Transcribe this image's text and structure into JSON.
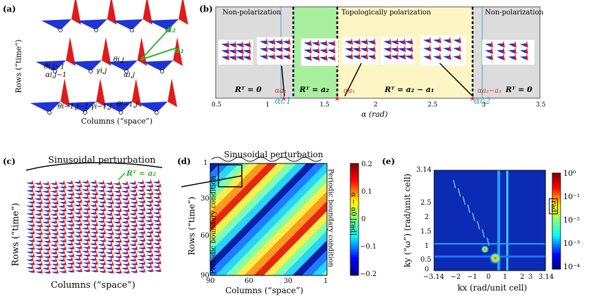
{
  "colors": {
    "red": "#e01b1b",
    "blue": "#1f33d6",
    "green_region": "#9ef09a",
    "yellow_region": "#fdf6c2",
    "gray_region": "#dcdcdc",
    "cyan_line": "#36a7d9",
    "green_text": "#2fb22f",
    "red_text": "#e03030",
    "cyan_text": "#1fa6d6"
  },
  "panel_a": {
    "tag": "(a)",
    "ylabel": "Rows (“time”)",
    "xlabel": "Columns (“space”)",
    "vec_a2": "a₂",
    "vec_a1": "a₁",
    "labels": [
      "θi,j",
      "θi,j−1",
      "αi,j−1",
      "γi,j",
      "αi,j",
      "θi−1,j−1",
      "γi−1,j",
      "θi−1,j"
    ]
  },
  "panel_b": {
    "tag": "(b)",
    "region_nonpol_left": "Non-polarization",
    "region_topo": "Topologically polarization",
    "region_nonpol_right": "Non-polarization",
    "rt_labels": [
      "Rᵀ = 0",
      "Rᵀ = a₂",
      "Rᵀ = a₂ − a₁",
      "Rᵀ = 0"
    ],
    "alpha_labels": [
      "αa₂",
      "αa₁",
      "αa₂−a₁"
    ],
    "critical_labels": [
      "αc1",
      "αc2"
    ],
    "xlabel": "α (rad)",
    "xticks": [
      "0.5",
      "1",
      "1.5",
      "2",
      "2.5",
      "3",
      "3.5"
    ]
  },
  "panel_c": {
    "tag": "(c)",
    "title": "Sinusoidal perturbation",
    "rt": "Rᵀ = a₂",
    "ylabel": "Rows (“time”)",
    "xlabel": "Columns (“space”)"
  },
  "panel_d": {
    "tag": "(d)",
    "title": "Sinusoidal perturbation",
    "ylabel": "Rows (“time”)",
    "xlabel": "Columns (“space”)",
    "left_boundary": "Periodic boundary condition",
    "right_boundary": "Periodic boundary condition",
    "yticks": [
      "1",
      "30",
      "60",
      "90"
    ],
    "xticks": [
      "90",
      "60",
      "30",
      "1"
    ],
    "colorbar_label": "α − α0 [rad]",
    "colorbar_ticks": [
      "0.2",
      "0.1",
      "0",
      "−0.1",
      "−0.2"
    ]
  },
  "panel_e": {
    "tag": "(e)",
    "ylabel": "ky (“ω”) (rad/unit cell)",
    "xlabel": "kx (rad/unit cell)",
    "yticks": [
      "3.14",
      "2.5",
      "2",
      "1.5",
      "1",
      "0.5",
      "0"
    ],
    "xticks": [
      "−3.14",
      "−2",
      "−1",
      "0",
      "1",
      "2",
      "3",
      "3.14"
    ],
    "colorbar_unit": "rad",
    "colorbar_ticks": [
      "10⁰",
      "10⁻¹",
      "10⁻²",
      "10⁻³",
      "10⁻⁴"
    ]
  }
}
